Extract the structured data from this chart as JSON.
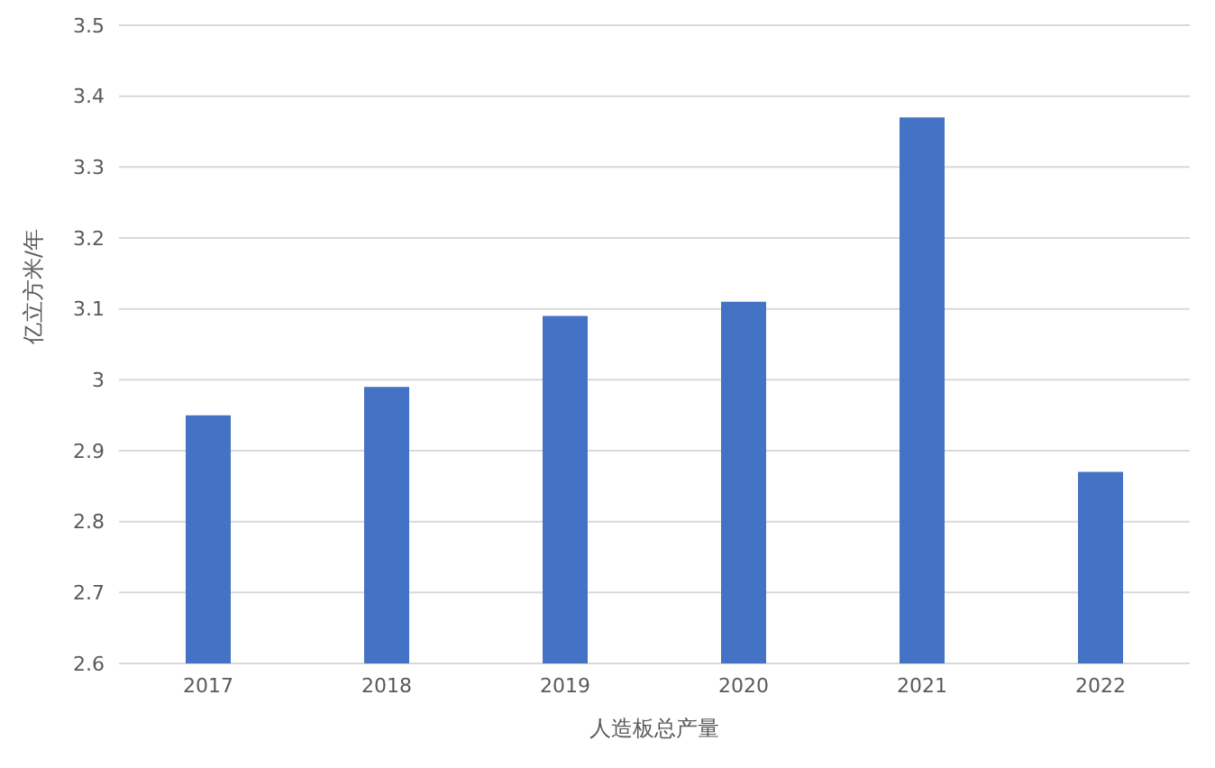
{
  "chart_data": {
    "type": "bar",
    "xlabel": "人造板总产量",
    "ylabel": "亿立方米/年",
    "categories": [
      "2017",
      "2018",
      "2019",
      "2020",
      "2021",
      "2022"
    ],
    "values": [
      2.95,
      2.99,
      3.09,
      3.11,
      3.37,
      2.87
    ],
    "color": "#4472c4",
    "ylim": [
      2.6,
      3.5
    ],
    "yticks": [
      2.6,
      2.7,
      2.8,
      2.9,
      3,
      3.1,
      3.2,
      3.3,
      3.4,
      3.5
    ],
    "grid": "y"
  }
}
